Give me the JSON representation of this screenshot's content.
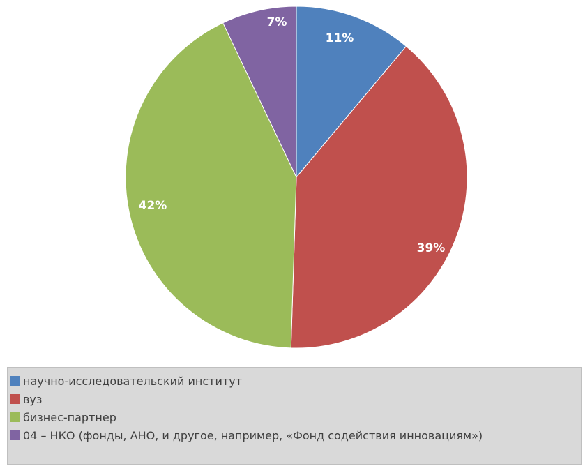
{
  "chart_data": {
    "type": "pie",
    "slices": [
      {
        "label": "научно-исследовательский институт",
        "value": 11,
        "value_label": "11%",
        "color": "#4f81bd"
      },
      {
        "label": "вуз",
        "value": 39,
        "value_label": "39%",
        "color": "#c0504d"
      },
      {
        "label": "бизнес-партнер",
        "value": 42,
        "value_label": "42%",
        "color": "#9bbb59"
      },
      {
        "label": "04 – НКО (фонды, АНО, и другое, например, «Фонд содействия инновациям»)",
        "value": 7,
        "value_label": "7%",
        "color": "#8064a2"
      }
    ],
    "legend_position": "bottom"
  }
}
